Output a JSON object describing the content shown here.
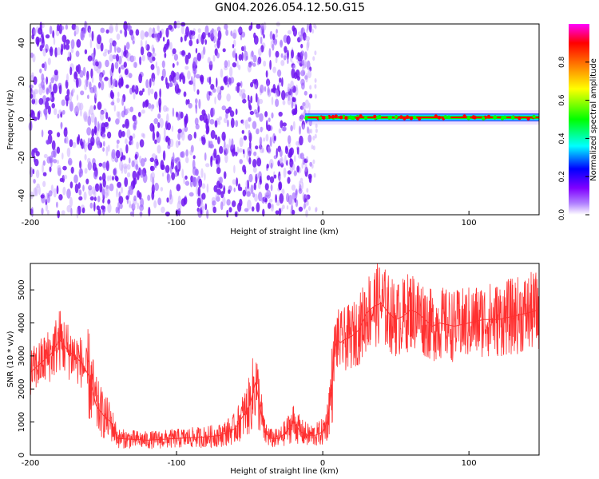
{
  "title": "GN04.2026.054.12.50.G15",
  "colors": {
    "spectrum_purple": "#6f16f0",
    "spectrum_light": "#c9a9ff",
    "snr_line": "#ff3030",
    "track_red": "#ff0000",
    "track_cyan": "#00e5ff",
    "track_green": "#00ff00",
    "track_blue": "#2030ff"
  },
  "chart_data": [
    {
      "type": "heatmap",
      "xlabel": "Height of straight line (km)",
      "ylabel": "Frequency (Hz)",
      "xlim": [
        -200,
        148
      ],
      "ylim": [
        -50,
        50
      ],
      "xticks": [
        -200,
        -100,
        0,
        100
      ],
      "yticks": [
        -40,
        -20,
        0,
        20,
        40
      ],
      "grid": false,
      "noise_region_x": [
        -200,
        -8
      ],
      "signal_track": {
        "x_range": [
          -12,
          148
        ],
        "frequency": 1
      },
      "colorbar": {
        "label": "Normalized spectral amplitude",
        "range": [
          0,
          1
        ],
        "ticks": [
          "0.0",
          "0.2",
          "0.4",
          "0.6",
          "0.8"
        ],
        "colormap": [
          "#ffffff",
          "#8000ff",
          "#0000ff",
          "#00ffff",
          "#00ff00",
          "#ffff00",
          "#ff8000",
          "#ff0000",
          "#ff00ff"
        ]
      }
    },
    {
      "type": "line",
      "xlabel": "Height of straight line (km)",
      "ylabel": "SNR (10 * v/v)",
      "xlim": [
        -200,
        148
      ],
      "ylim": [
        0,
        5800
      ],
      "xticks": [
        -200,
        -100,
        0,
        100
      ],
      "yticks": [
        0,
        1000,
        2000,
        3000,
        4000,
        5000
      ],
      "grid": false,
      "series": [
        {
          "x": [
            -200,
            -195,
            -190,
            -185,
            -180,
            -175,
            -170,
            -165,
            -160,
            -155,
            -150,
            -145,
            -140,
            -120,
            -100,
            -80,
            -70,
            -60,
            -50,
            -46,
            -43,
            -40,
            -35,
            -30,
            -25,
            -20,
            -15,
            -10,
            -5,
            0,
            3,
            6,
            8,
            10,
            12,
            15,
            20,
            25,
            30,
            35,
            40,
            45,
            50,
            55,
            60,
            65,
            70,
            75,
            80,
            90,
            100,
            110,
            120,
            130,
            140,
            148
          ],
          "y": [
            2500,
            2700,
            2900,
            3100,
            3500,
            3200,
            3000,
            2800,
            2400,
            1500,
            1200,
            1000,
            500,
            450,
            500,
            550,
            600,
            800,
            1500,
            2200,
            1500,
            700,
            500,
            500,
            700,
            1000,
            700,
            600,
            600,
            700,
            1000,
            2000,
            3200,
            3500,
            3400,
            3500,
            3600,
            3800,
            4300,
            4500,
            4600,
            4300,
            4100,
            4200,
            4400,
            4300,
            4100,
            3900,
            4000,
            3900,
            4000,
            4100,
            4100,
            4200,
            4300,
            4400
          ]
        }
      ]
    }
  ]
}
